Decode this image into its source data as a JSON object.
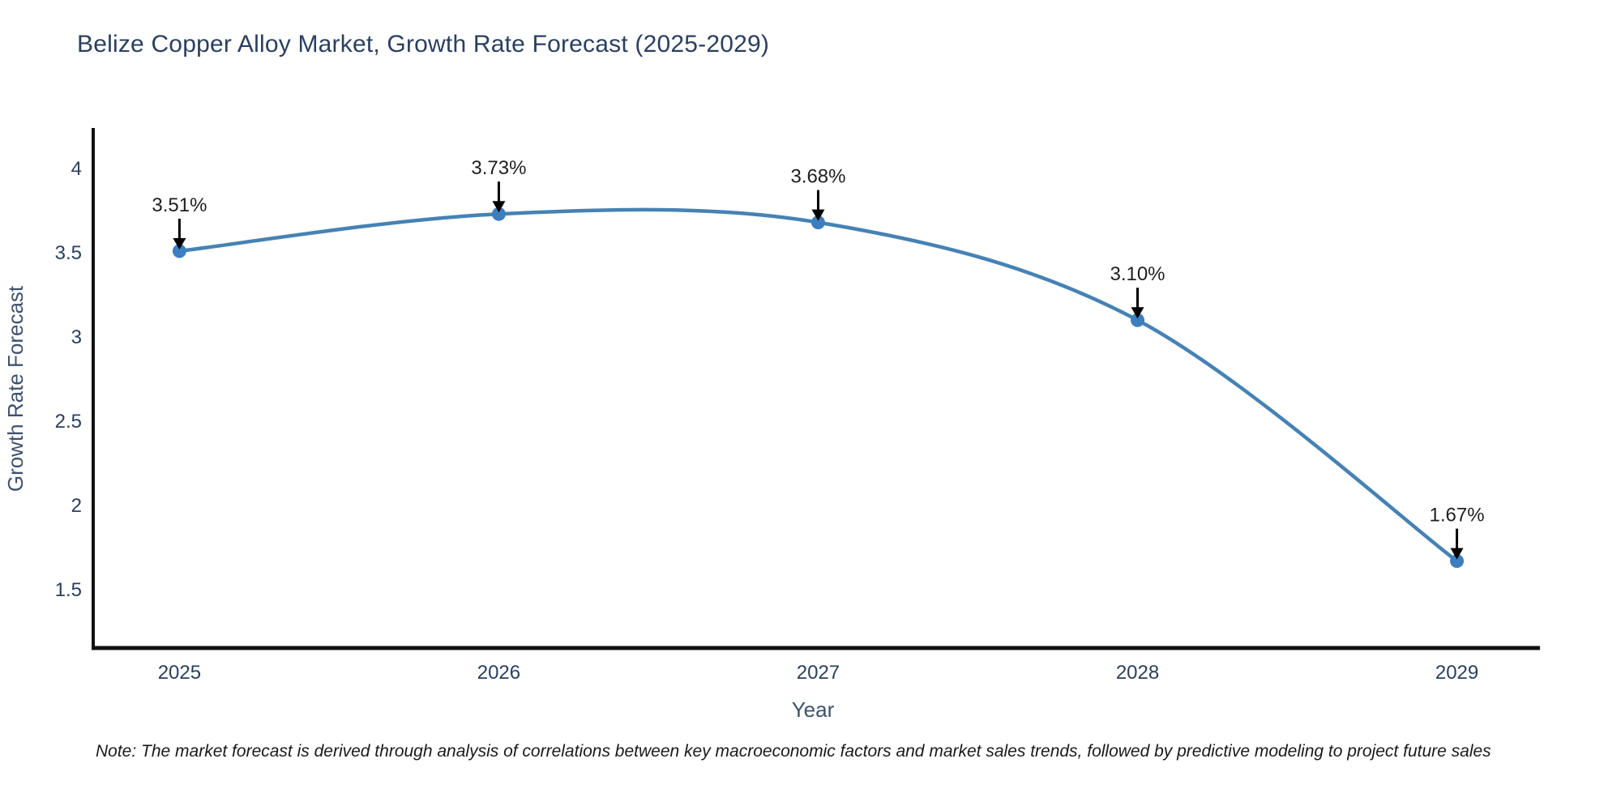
{
  "title": "Belize Copper Alloy Market, Growth Rate Forecast (2025-2029)",
  "note": "Note: The market forecast is derived through analysis of correlations between key macroeconomic factors and market sales trends, followed by predictive modeling to project future sales",
  "chart_data": {
    "type": "line",
    "title": "Belize Copper Alloy Market, Growth Rate Forecast (2025-2029)",
    "xlabel": "Year",
    "ylabel": "Growth Rate Forecast",
    "x": [
      2025,
      2026,
      2027,
      2028,
      2029
    ],
    "values": [
      3.51,
      3.73,
      3.68,
      3.1,
      1.67
    ],
    "point_labels": [
      "3.51%",
      "3.73%",
      "3.68%",
      "3.10%",
      "1.67%"
    ],
    "xtick_labels": [
      "2025",
      "2026",
      "2027",
      "2028",
      "2029"
    ],
    "yticks": [
      1.5,
      2,
      2.5,
      3,
      3.5,
      4
    ],
    "ytick_labels": [
      "1.5",
      "2",
      "2.5",
      "3",
      "3.5",
      "4"
    ],
    "xlim": [
      2024.73,
      2029.26
    ],
    "ylim": [
      1.154,
      4.231
    ],
    "grid": false,
    "legend": "none",
    "line_color": "#4682b4",
    "marker_color": "#3d7ebf",
    "arrow_color": "#000000",
    "spine_color": "#111111",
    "tick_color": "#2a3f5f",
    "annotation_text_color": "#1f1f1f"
  }
}
